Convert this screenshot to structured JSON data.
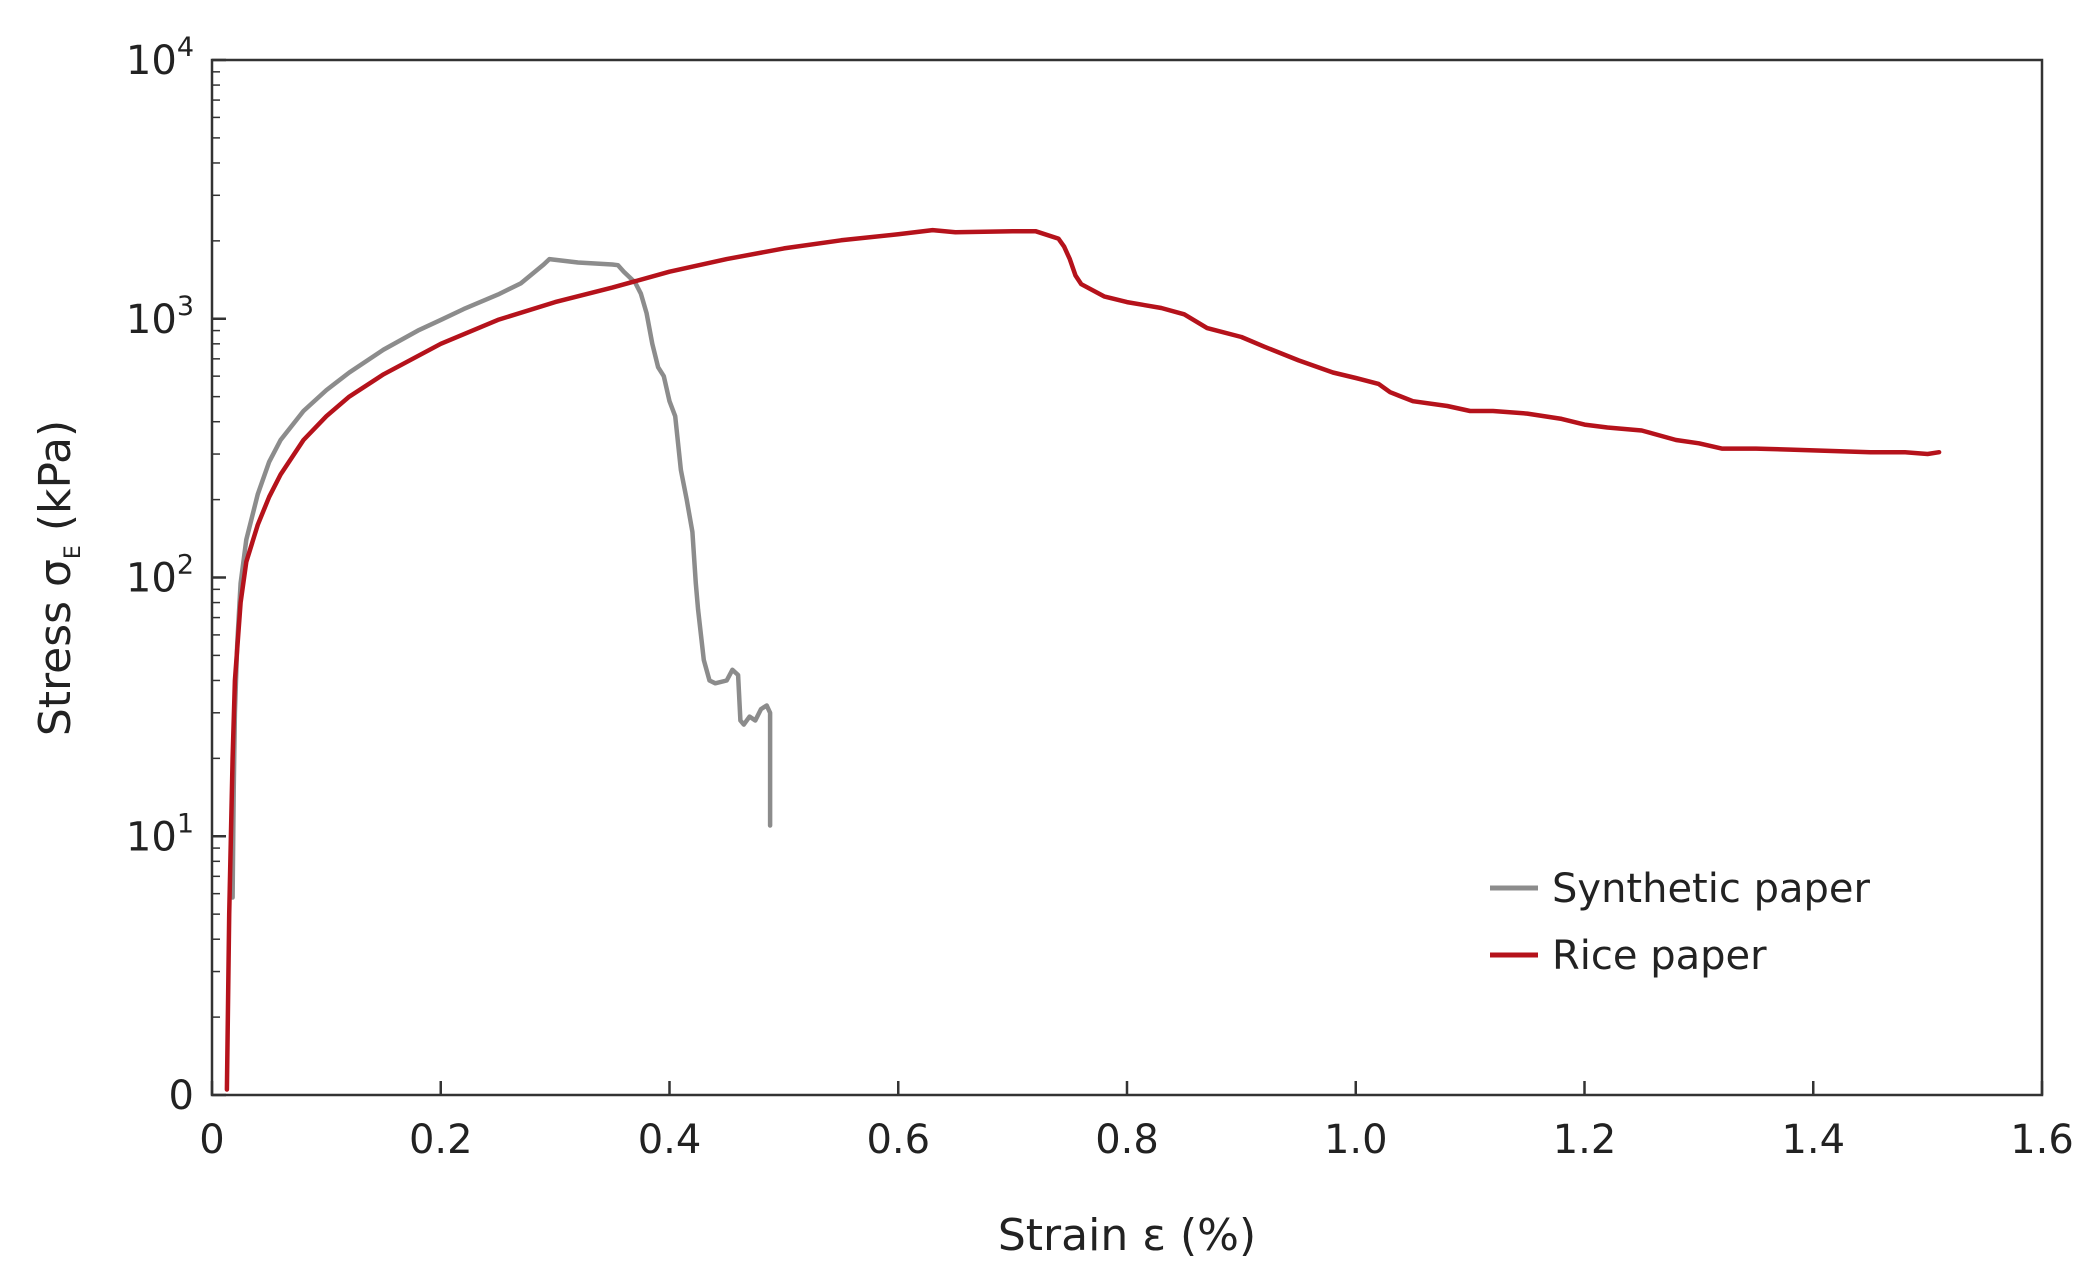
{
  "chart_data": {
    "type": "line",
    "title": "",
    "xlabel": "Strain ε (%)",
    "ylabel": {
      "base": "Stress σ",
      "subscript": "E",
      "unit": " (kPa)"
    },
    "xlim": [
      0,
      1.6
    ],
    "ylim": [
      1,
      10000
    ],
    "y_scale": "log",
    "x_ticks": [
      "0",
      "0.2",
      "0.4",
      "0.6",
      "0.8",
      "1.0",
      "1.2",
      "1.4",
      "1.6"
    ],
    "x_tick_values": [
      0,
      0.2,
      0.4,
      0.6,
      0.8,
      1.0,
      1.2,
      1.4,
      1.6
    ],
    "y_ticks": [
      {
        "value": 1,
        "base": "0",
        "exp": ""
      },
      {
        "value": 10,
        "base": "10",
        "exp": "1"
      },
      {
        "value": 100,
        "base": "10",
        "exp": "2"
      },
      {
        "value": 1000,
        "base": "10",
        "exp": "3"
      },
      {
        "value": 10000,
        "base": "10",
        "exp": "4"
      }
    ],
    "grid": false,
    "legend_position": "lower-right",
    "series": [
      {
        "name": "Synthetic paper",
        "color": "#8c8c8c",
        "points": [
          [
            0.018,
            5.8
          ],
          [
            0.019,
            15
          ],
          [
            0.02,
            30
          ],
          [
            0.022,
            55
          ],
          [
            0.025,
            95
          ],
          [
            0.03,
            140
          ],
          [
            0.04,
            210
          ],
          [
            0.05,
            280
          ],
          [
            0.06,
            340
          ],
          [
            0.08,
            440
          ],
          [
            0.1,
            530
          ],
          [
            0.12,
            620
          ],
          [
            0.15,
            760
          ],
          [
            0.18,
            900
          ],
          [
            0.2,
            990
          ],
          [
            0.22,
            1090
          ],
          [
            0.25,
            1240
          ],
          [
            0.27,
            1370
          ],
          [
            0.29,
            1620
          ],
          [
            0.295,
            1700
          ],
          [
            0.32,
            1650
          ],
          [
            0.35,
            1620
          ],
          [
            0.355,
            1610
          ],
          [
            0.36,
            1520
          ],
          [
            0.37,
            1380
          ],
          [
            0.375,
            1250
          ],
          [
            0.38,
            1050
          ],
          [
            0.385,
            800
          ],
          [
            0.39,
            650
          ],
          [
            0.395,
            600
          ],
          [
            0.4,
            480
          ],
          [
            0.405,
            420
          ],
          [
            0.41,
            260
          ],
          [
            0.415,
            200
          ],
          [
            0.42,
            150
          ],
          [
            0.423,
            95
          ],
          [
            0.425,
            75
          ],
          [
            0.43,
            48
          ],
          [
            0.435,
            40
          ],
          [
            0.44,
            39
          ],
          [
            0.45,
            40
          ],
          [
            0.455,
            44
          ],
          [
            0.46,
            42
          ],
          [
            0.462,
            28
          ],
          [
            0.465,
            27
          ],
          [
            0.47,
            29
          ],
          [
            0.475,
            28
          ],
          [
            0.48,
            31
          ],
          [
            0.485,
            32
          ],
          [
            0.488,
            30
          ],
          [
            0.488,
            11
          ]
        ]
      },
      {
        "name": "Rice paper",
        "color": "#b5121b",
        "points": [
          [
            0.013,
            1.05
          ],
          [
            0.015,
            5
          ],
          [
            0.018,
            20
          ],
          [
            0.02,
            40
          ],
          [
            0.025,
            80
          ],
          [
            0.03,
            115
          ],
          [
            0.04,
            160
          ],
          [
            0.05,
            205
          ],
          [
            0.06,
            250
          ],
          [
            0.08,
            340
          ],
          [
            0.1,
            420
          ],
          [
            0.12,
            500
          ],
          [
            0.15,
            610
          ],
          [
            0.2,
            800
          ],
          [
            0.25,
            990
          ],
          [
            0.3,
            1160
          ],
          [
            0.35,
            1320
          ],
          [
            0.4,
            1520
          ],
          [
            0.45,
            1700
          ],
          [
            0.5,
            1870
          ],
          [
            0.55,
            2010
          ],
          [
            0.6,
            2120
          ],
          [
            0.63,
            2200
          ],
          [
            0.65,
            2160
          ],
          [
            0.7,
            2180
          ],
          [
            0.72,
            2180
          ],
          [
            0.74,
            2040
          ],
          [
            0.745,
            1900
          ],
          [
            0.75,
            1700
          ],
          [
            0.755,
            1470
          ],
          [
            0.76,
            1360
          ],
          [
            0.78,
            1220
          ],
          [
            0.8,
            1160
          ],
          [
            0.83,
            1100
          ],
          [
            0.85,
            1040
          ],
          [
            0.87,
            920
          ],
          [
            0.9,
            850
          ],
          [
            0.92,
            780
          ],
          [
            0.95,
            690
          ],
          [
            0.98,
            620
          ],
          [
            1.0,
            590
          ],
          [
            1.02,
            560
          ],
          [
            1.03,
            520
          ],
          [
            1.05,
            480
          ],
          [
            1.08,
            460
          ],
          [
            1.1,
            440
          ],
          [
            1.12,
            440
          ],
          [
            1.15,
            430
          ],
          [
            1.18,
            410
          ],
          [
            1.2,
            390
          ],
          [
            1.22,
            380
          ],
          [
            1.25,
            370
          ],
          [
            1.28,
            340
          ],
          [
            1.3,
            330
          ],
          [
            1.32,
            315
          ],
          [
            1.35,
            315
          ],
          [
            1.38,
            312
          ],
          [
            1.4,
            310
          ],
          [
            1.45,
            305
          ],
          [
            1.48,
            305
          ],
          [
            1.5,
            300
          ],
          [
            1.51,
            305
          ]
        ]
      }
    ]
  }
}
